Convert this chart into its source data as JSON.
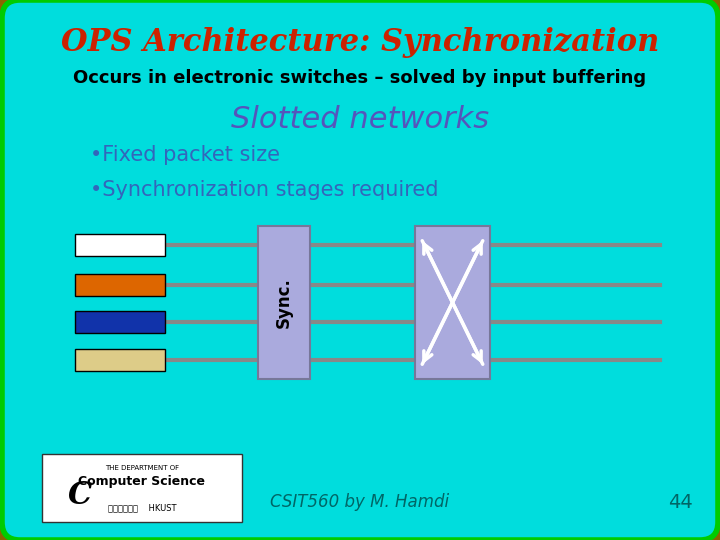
{
  "title": "OPS Architecture: Synchronization",
  "subtitle": "Occurs in electronic switches – solved by input buffering",
  "slotted_title": "Slotted networks",
  "bullet1": "•Fixed packet size",
  "bullet2": "•Synchronization stages required",
  "footer": "CSIT560 by M. Hamdi",
  "page_num": "44",
  "sync_label": "Sync.",
  "bg_color": "#00DDDD",
  "outer_bg": "#8B6400",
  "title_color": "#CC2200",
  "subtitle_color": "#000000",
  "slotted_color": "#5555BB",
  "bullet_color": "#3366BB",
  "footer_color": "#006666",
  "packet_colors": [
    "#FFFFFF",
    "#DD6600",
    "#1133AA",
    "#DDCC88"
  ],
  "sync_box_color": "#AAAADD",
  "switch_box_color": "#AAAADD",
  "line_color": "#888888",
  "arrow_color": "#FFFFFF",
  "green_border": "#00CC00"
}
